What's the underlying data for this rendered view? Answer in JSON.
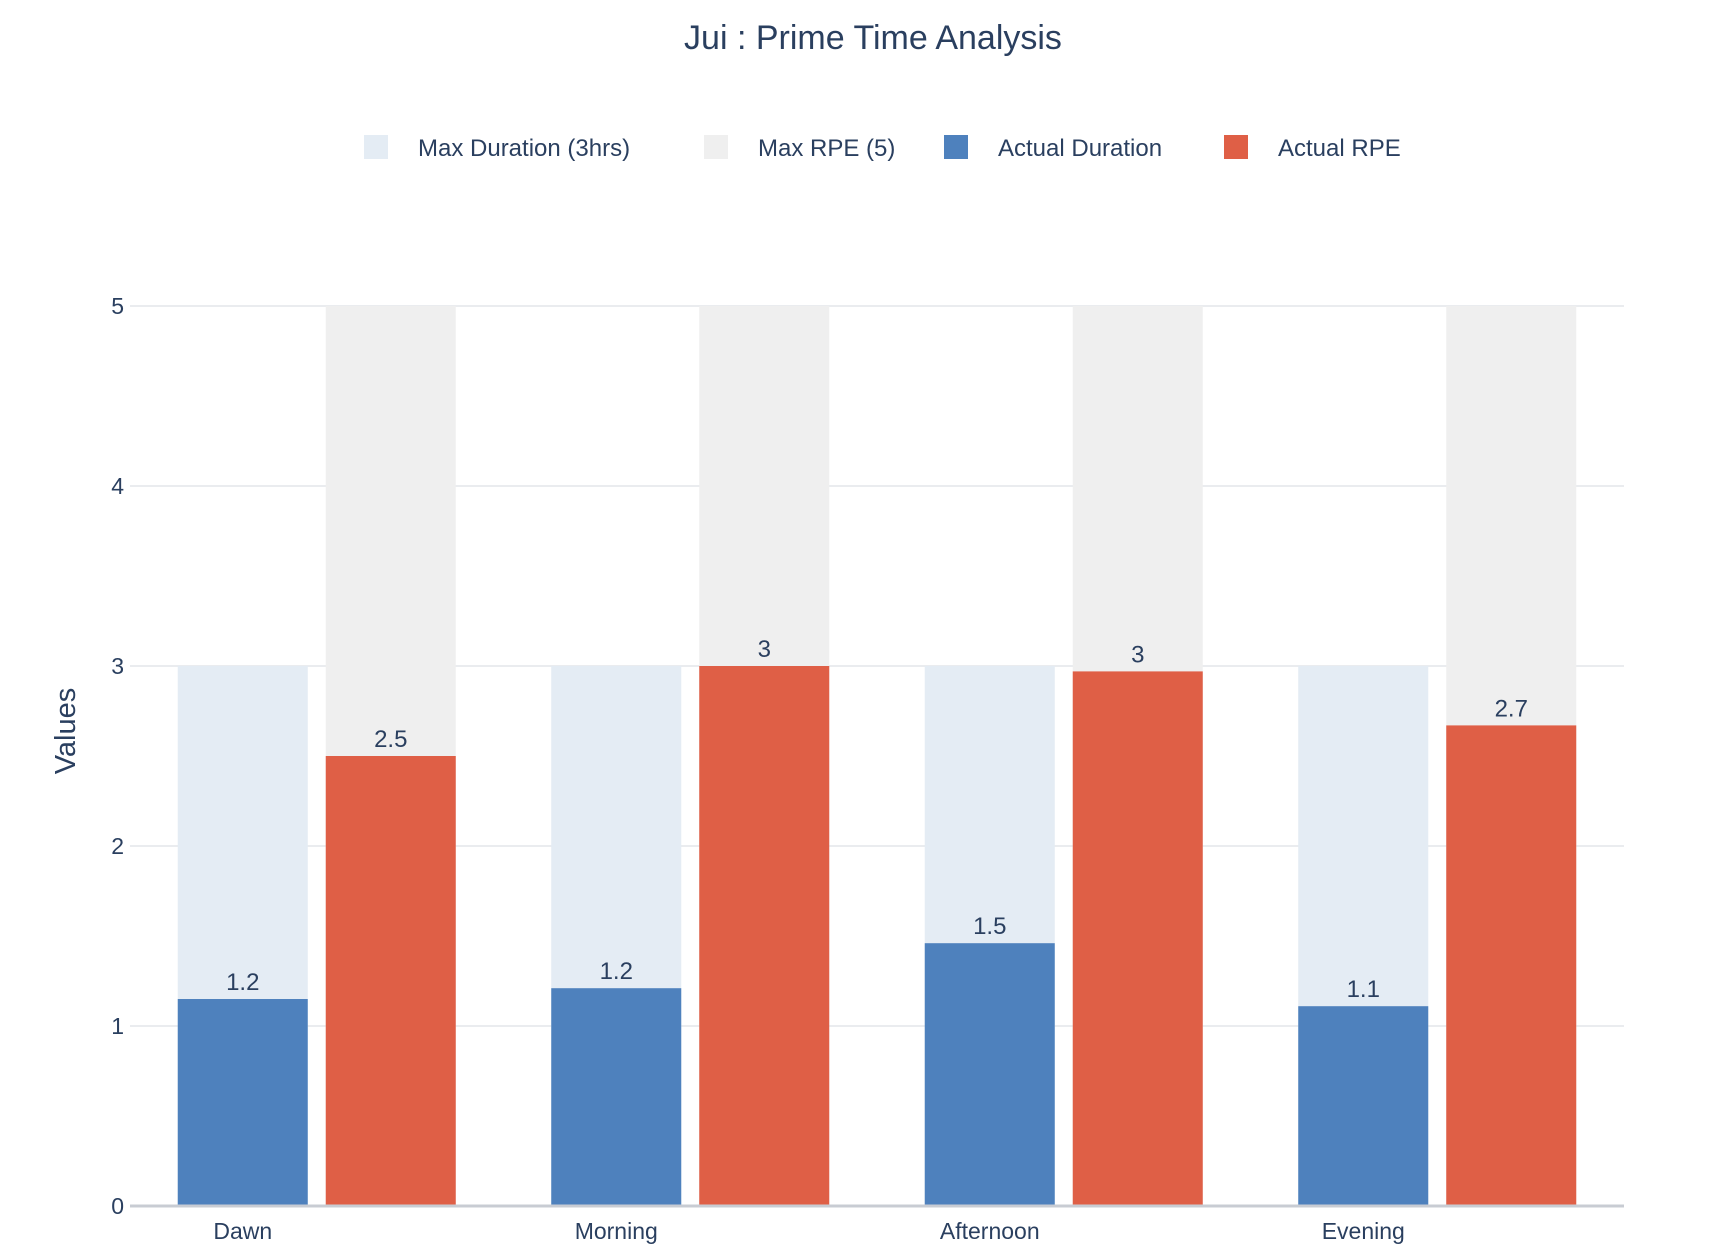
{
  "chart_data": {
    "type": "bar",
    "title": "Jui : Prime Time Analysis",
    "xlabel": "",
    "ylabel": "Values",
    "ylim": [
      0,
      5
    ],
    "yticks": [
      0,
      1,
      2,
      3,
      4,
      5
    ],
    "grid": true,
    "legend_position": "top-center",
    "categories": [
      "Dawn",
      "Morning",
      "Afternoon",
      "Evening"
    ],
    "series": [
      {
        "name": "Max Duration (3hrs)",
        "values": [
          3,
          3,
          3,
          3
        ],
        "color": "#e4ecf4",
        "group": "duration",
        "labels": [
          "",
          "",
          "",
          ""
        ]
      },
      {
        "name": "Max RPE (5)",
        "values": [
          5,
          5,
          5,
          5
        ],
        "color": "#efefef",
        "group": "rpe",
        "labels": [
          "",
          "",
          "",
          ""
        ]
      },
      {
        "name": "Actual Duration",
        "values": [
          1.15,
          1.21,
          1.46,
          1.11
        ],
        "color": "#4e81bd",
        "group": "duration",
        "labels": [
          "1.2",
          "1.2",
          "1.5",
          "1.1"
        ]
      },
      {
        "name": "Actual RPE",
        "values": [
          2.5,
          3.0,
          2.97,
          2.67
        ],
        "color": "#df5f46",
        "group": "rpe",
        "labels": [
          "2.5",
          "3",
          "3",
          "2.7"
        ]
      }
    ]
  }
}
